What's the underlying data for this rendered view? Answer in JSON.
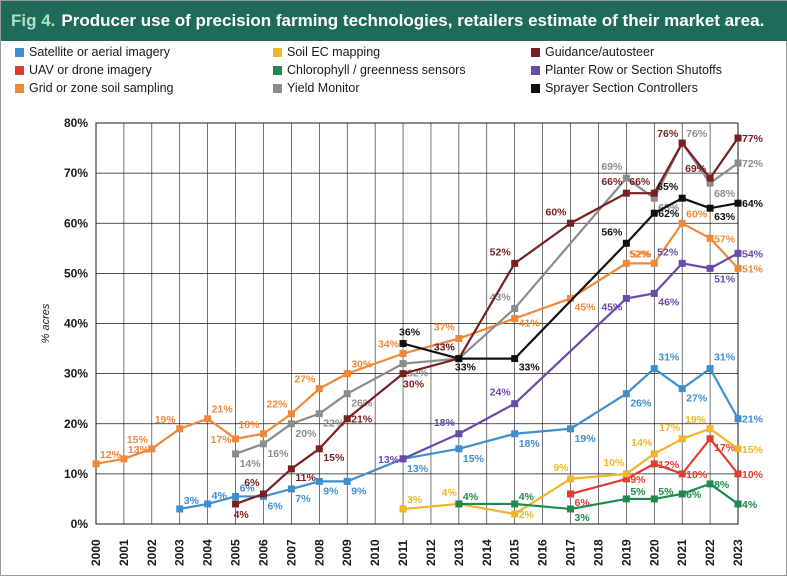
{
  "figure": {
    "label": "Fig 4.",
    "title": "Producer use of precision farming technologies, retailers estimate of their market area."
  },
  "chart_data": {
    "type": "line",
    "title": "Producer use of precision farming technologies, retailers estimate of their market area.",
    "xlabel": "",
    "ylabel": "% acres",
    "x": [
      "2000",
      "2001",
      "2002",
      "2003",
      "2004",
      "2005",
      "2006",
      "2007",
      "2008",
      "2009",
      "2010",
      "2011",
      "2012",
      "2013",
      "2014",
      "2015",
      "2016",
      "2017",
      "2018",
      "2019",
      "2020",
      "2021",
      "2022",
      "2023"
    ],
    "ylim": [
      0,
      80
    ],
    "yticks": [
      0,
      10,
      20,
      30,
      40,
      50,
      60,
      70,
      80
    ],
    "ytick_labels": [
      "0%",
      "10%",
      "20%",
      "30%",
      "40%",
      "50%",
      "60%",
      "70%",
      "80%"
    ],
    "grid": true,
    "legend_position": "top",
    "series": [
      {
        "name": "Satellite or aerial imagery",
        "color": "#3e8fd0",
        "points": [
          [
            "2003",
            3,
            "3%"
          ],
          [
            "2004",
            4,
            "4%"
          ],
          [
            "2005",
            5.5,
            "6%"
          ],
          [
            "2006",
            5.5,
            "6%"
          ],
          [
            "2007",
            7,
            "7%"
          ],
          [
            "2008",
            8.5,
            "9%"
          ],
          [
            "2009",
            8.5,
            "9%"
          ],
          [
            "2011",
            13,
            "13%"
          ],
          [
            "2013",
            15,
            "15%"
          ],
          [
            "2015",
            18,
            "18%"
          ],
          [
            "2017",
            19,
            "19%"
          ],
          [
            "2019",
            26,
            "26%"
          ],
          [
            "2020",
            31,
            "31%"
          ],
          [
            "2021",
            27,
            "27%"
          ],
          [
            "2022",
            31,
            "31%"
          ],
          [
            "2023",
            21,
            "21%"
          ]
        ]
      },
      {
        "name": "UAV or drone imagery",
        "color": "#e03c31",
        "points": [
          [
            "2017",
            6,
            "6%"
          ],
          [
            "2019",
            9,
            "9%"
          ],
          [
            "2020",
            12,
            "12%"
          ],
          [
            "2021",
            10,
            "10%"
          ],
          [
            "2022",
            17,
            "17%"
          ],
          [
            "2023",
            10,
            "10%"
          ]
        ]
      },
      {
        "name": "Grid or zone soil sampling",
        "color": "#f0883a",
        "points": [
          [
            "2000",
            12,
            "12%"
          ],
          [
            "2001",
            13,
            "13%"
          ],
          [
            "2002",
            15,
            "15%"
          ],
          [
            "2003",
            19,
            "19%"
          ],
          [
            "2004",
            21,
            "21%"
          ],
          [
            "2005",
            17,
            "17%"
          ],
          [
            "2006",
            18,
            "18%"
          ],
          [
            "2007",
            22,
            "22%"
          ],
          [
            "2008",
            27,
            "27%"
          ],
          [
            "2009",
            30,
            "30%"
          ],
          [
            "2011",
            34,
            "34%"
          ],
          [
            "2013",
            37,
            "37%"
          ],
          [
            "2015",
            41,
            "41%"
          ],
          [
            "2017",
            45,
            "45%"
          ],
          [
            "2019",
            52,
            "52%"
          ],
          [
            "2020",
            52,
            "52%"
          ],
          [
            "2021",
            60,
            "60%"
          ],
          [
            "2022",
            57,
            "57%"
          ],
          [
            "2023",
            51,
            "51%"
          ]
        ]
      },
      {
        "name": "Soil EC mapping",
        "color": "#f0b52a",
        "points": [
          [
            "2011",
            3,
            "3%"
          ],
          [
            "2013",
            4,
            "4%"
          ],
          [
            "2015",
            2,
            "2%"
          ],
          [
            "2017",
            9,
            "9%"
          ],
          [
            "2019",
            10,
            "10%"
          ],
          [
            "2020",
            14,
            "14%"
          ],
          [
            "2021",
            17,
            "17%"
          ],
          [
            "2022",
            19,
            "19%"
          ],
          [
            "2023",
            15,
            "15%"
          ]
        ]
      },
      {
        "name": "Chlorophyll / greenness sensors",
        "color": "#1e8a4c",
        "points": [
          [
            "2013",
            4,
            "4%"
          ],
          [
            "2015",
            4,
            "4%"
          ],
          [
            "2017",
            3,
            "3%"
          ],
          [
            "2019",
            5,
            "5%"
          ],
          [
            "2020",
            5,
            "5%"
          ],
          [
            "2021",
            6,
            "6%"
          ],
          [
            "2022",
            8,
            "8%"
          ],
          [
            "2023",
            4,
            "4%"
          ]
        ]
      },
      {
        "name": "Yield Monitor",
        "color": "#8c8c8c",
        "points": [
          [
            "2005",
            14,
            "14%"
          ],
          [
            "2006",
            16,
            "16%"
          ],
          [
            "2007",
            20,
            "20%"
          ],
          [
            "2008",
            22,
            "22%"
          ],
          [
            "2009",
            26,
            "26%"
          ],
          [
            "2011",
            32,
            "32%"
          ],
          [
            "2013",
            33,
            "33%"
          ],
          [
            "2015",
            43,
            "43%"
          ],
          [
            "2019",
            69,
            "69%"
          ],
          [
            "2020",
            65,
            "65%"
          ],
          [
            "2021",
            76,
            "76%"
          ],
          [
            "2022",
            68,
            "68%"
          ],
          [
            "2023",
            72,
            "72%"
          ]
        ]
      },
      {
        "name": "Guidance/autosteer",
        "color": "#7a1f1f",
        "points": [
          [
            "2005",
            4,
            "4%"
          ],
          [
            "2006",
            6,
            "6%"
          ],
          [
            "2007",
            11,
            "11%"
          ],
          [
            "2008",
            15,
            "15%"
          ],
          [
            "2009",
            21,
            "21%"
          ],
          [
            "2011",
            30,
            "30%"
          ],
          [
            "2013",
            33,
            "33%"
          ],
          [
            "2015",
            52,
            "52%"
          ],
          [
            "2017",
            60,
            "60%"
          ],
          [
            "2019",
            66,
            "66%"
          ],
          [
            "2020",
            66,
            "66%"
          ],
          [
            "2021",
            76,
            "76%"
          ],
          [
            "2022",
            69,
            "69%"
          ],
          [
            "2023",
            77,
            "77%"
          ]
        ]
      },
      {
        "name": "Planter Row or Section Shutoffs",
        "color": "#6a4aa8",
        "points": [
          [
            "2011",
            13,
            "13%"
          ],
          [
            "2013",
            18,
            "18%"
          ],
          [
            "2015",
            24,
            "24%"
          ],
          [
            "2019",
            45,
            "45%"
          ],
          [
            "2020",
            46,
            "46%"
          ],
          [
            "2021",
            52,
            "52%"
          ],
          [
            "2022",
            51,
            "51%"
          ],
          [
            "2023",
            54,
            "54%"
          ]
        ]
      },
      {
        "name": "Sprayer Section Controllers",
        "color": "#111111",
        "points": [
          [
            "2011",
            36,
            "36%"
          ],
          [
            "2013",
            33,
            "33%"
          ],
          [
            "2015",
            33,
            "33%"
          ],
          [
            "2019",
            56,
            "56%"
          ],
          [
            "2020",
            62,
            "62%"
          ],
          [
            "2021",
            65,
            "65%"
          ],
          [
            "2022",
            63,
            "63%"
          ],
          [
            "2023",
            64,
            "64%"
          ]
        ]
      }
    ]
  }
}
